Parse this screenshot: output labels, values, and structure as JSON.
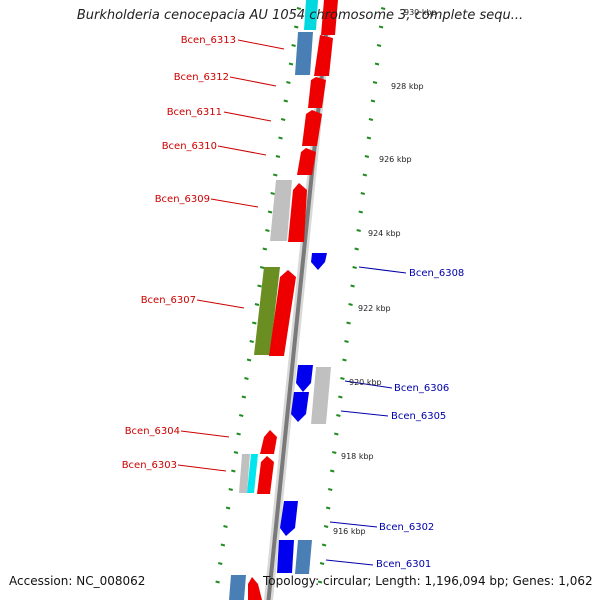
{
  "title": "Burkholderia cenocepacia AU 1054 chromosome 3, complete sequ...",
  "accession": "Accession: NC_008062",
  "topology": "Topology: circular; Length: 1,196,094 bp; Genes: 1,062",
  "colors": {
    "forward_gene": "#ff0000",
    "reverse_gene": "#0000ee",
    "other_feature": "#bbbbbb",
    "olive_feature": "#6b8e23",
    "steel_feature": "#4682b4",
    "cyan_feature": "#00e5ee",
    "backbone": "#808080",
    "gc_skew": "#228b22",
    "label_forward": "#cc0000",
    "label_reverse": "#0000aa"
  },
  "ticks": [
    "930 kbp",
    "928 kbp",
    "926 kbp",
    "924 kbp",
    "922 kbp",
    "920 kbp",
    "918 kbp",
    "916 kbp"
  ],
  "genes_forward": [
    "Bcen_6313",
    "Bcen_6312",
    "Bcen_6311",
    "Bcen_6310",
    "Bcen_6309",
    "Bcen_6307",
    "Bcen_6304",
    "Bcen_6303"
  ],
  "genes_reverse": [
    "Bcen_6308",
    "Bcen_6306",
    "Bcen_6305",
    "Bcen_6302",
    "Bcen_6301"
  ]
}
